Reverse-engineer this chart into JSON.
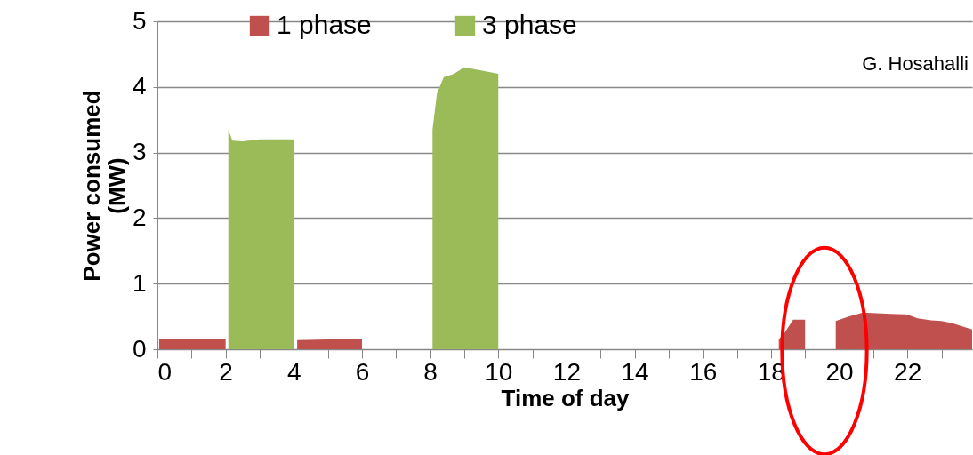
{
  "chart_data": {
    "type": "area",
    "xlabel": "Time of day",
    "ylabel": "Power consumed (MW)",
    "annotations": [
      "G. Hosahalli"
    ],
    "xlim": [
      0,
      23.9
    ],
    "ylim": [
      0,
      5
    ],
    "xticks": [
      0,
      {
        "value": 1,
        "label": null
      },
      2,
      {
        "value": 3,
        "label": null
      },
      4,
      {
        "value": 5,
        "label": null
      },
      6,
      {
        "value": 7,
        "label": null
      },
      8,
      {
        "value": 9,
        "label": null
      },
      10,
      {
        "value": 11,
        "label": null
      },
      12,
      {
        "value": 13,
        "label": null
      },
      14,
      {
        "value": 15,
        "label": null
      },
      16,
      {
        "value": 17,
        "label": null
      },
      18,
      {
        "value": 19,
        "label": null
      },
      20,
      {
        "value": 21,
        "label": null
      },
      22,
      {
        "value": 23,
        "label": null
      }
    ],
    "yticks": [
      0,
      1,
      2,
      3,
      4,
      5
    ],
    "grid": "y",
    "legend": "top",
    "series": [
      {
        "name": "1 phase",
        "color": "#c0504d",
        "x": [
          0.05,
          0.5,
          1,
          1.5,
          2,
          3,
          4.1,
          5,
          6,
          12,
          18.23,
          18.4,
          18.65,
          19,
          19.5,
          19.9,
          20.3,
          20.7,
          21.5,
          22,
          22.3,
          22.7,
          23,
          23.3,
          23.9
        ],
        "values": [
          0.16,
          0.16,
          0.16,
          0.16,
          0.16,
          null,
          0.14,
          0.15,
          0.15,
          null,
          0.15,
          0.25,
          0.45,
          0.45,
          null,
          0.43,
          0.5,
          0.56,
          0.54,
          0.53,
          0.47,
          0.44,
          0.43,
          0.4,
          0.3
        ]
      },
      {
        "name": "3 phase",
        "color": "#9bbb59",
        "x": [
          2.08,
          2.2,
          2.5,
          3,
          3.5,
          4,
          6,
          8.07,
          8.2,
          8.4,
          8.7,
          9,
          9.5,
          10
        ],
        "values": [
          3.35,
          3.18,
          3.17,
          3.2,
          3.2,
          3.2,
          null,
          3.35,
          3.9,
          4.15,
          4.2,
          4.3,
          4.25,
          4.2
        ]
      }
    ]
  }
}
